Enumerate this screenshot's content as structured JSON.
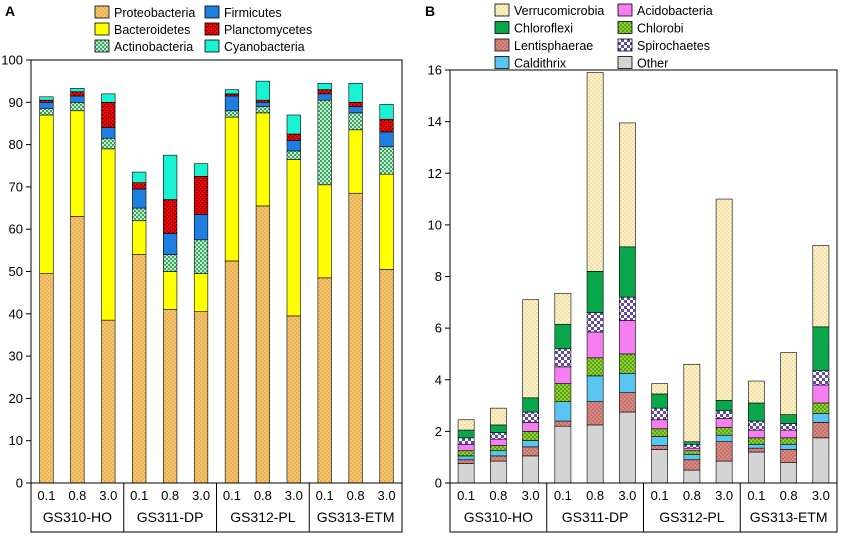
{
  "colors": {
    "Proteobacteria": "#f5c36a",
    "Bacteroidetes": "#ffff00",
    "Actinobacteria": "#a7dcb7",
    "Firmicutes": "#1f7fe0",
    "Planctomycetes": "#ff0000",
    "Cyanobacteria": "#19f2d3",
    "Verrucomicrobia": "#fbf1c4",
    "Acidobacteria": "#f57ff0",
    "Chloroflexi": "#0aa64c",
    "Chlorobi": "#8ed12a",
    "Lentisphaerae": "#cc7a73",
    "Spirochaetes": "#9b8fd0",
    "Caldithrix": "#5bc5f2",
    "Other": "#d4d4d4"
  },
  "chart_data": [
    {
      "panel": "A",
      "type": "bar",
      "stacked": true,
      "ylim": [
        0,
        100
      ],
      "yticks": [
        0,
        10,
        20,
        30,
        40,
        50,
        60,
        70,
        80,
        90,
        100
      ],
      "categories": [
        "0.1",
        "0.8",
        "3.0",
        "0.1",
        "0.8",
        "3.0",
        "0.1",
        "0.8",
        "3.0",
        "0.1",
        "0.8",
        "3.0"
      ],
      "groups": [
        {
          "label": "GS310-HO",
          "count": 3
        },
        {
          "label": "GS311-DP",
          "count": 3
        },
        {
          "label": "GS312-PL",
          "count": 3
        },
        {
          "label": "GS313-ETM",
          "count": 3
        }
      ],
      "legend": [
        "Proteobacteria",
        "Firmicutes",
        "Bacteroidetes",
        "Planctomycetes",
        "Actinobacteria",
        "Cyanobacteria"
      ],
      "series": [
        {
          "name": "Proteobacteria",
          "values": [
            49.5,
            63,
            38.5,
            54,
            41,
            40.5,
            52.5,
            65.5,
            39.5,
            48.5,
            68.5,
            50.5
          ]
        },
        {
          "name": "Bacteroidetes",
          "values": [
            37.5,
            25,
            40.5,
            8,
            9,
            9,
            34,
            22,
            37,
            22,
            15,
            22.5
          ]
        },
        {
          "name": "Actinobacteria",
          "values": [
            1.5,
            2,
            2.5,
            3,
            4,
            8,
            1.5,
            1.5,
            2,
            20,
            4,
            6.5
          ]
        },
        {
          "name": "Firmicutes",
          "values": [
            1.5,
            1.5,
            2.5,
            4.5,
            5,
            6,
            3.5,
            1,
            2.5,
            1.5,
            1.5,
            3.5
          ]
        },
        {
          "name": "Planctomycetes",
          "values": [
            0.5,
            1,
            6,
            1.5,
            8,
            9,
            0.5,
            0.5,
            1.5,
            1,
            1,
            3
          ]
        },
        {
          "name": "Cyanobacteria",
          "values": [
            0.8,
            0.8,
            2,
            2.5,
            10.5,
            3,
            1,
            4.5,
            4.5,
            1.5,
            4.5,
            3.5
          ]
        }
      ]
    },
    {
      "panel": "B",
      "type": "bar",
      "stacked": true,
      "ylim": [
        0,
        16
      ],
      "yticks": [
        0,
        2,
        4,
        6,
        8,
        10,
        12,
        14,
        16
      ],
      "categories": [
        "0.1",
        "0.8",
        "3.0",
        "0.1",
        "0.8",
        "3.0",
        "0.1",
        "0.8",
        "3.0",
        "0.1",
        "0.8",
        "3.0"
      ],
      "groups": [
        {
          "label": "GS310-HO",
          "count": 3
        },
        {
          "label": "GS311-DP",
          "count": 3
        },
        {
          "label": "GS312-PL",
          "count": 3
        },
        {
          "label": "GS313-ETM",
          "count": 3
        }
      ],
      "legend": [
        "Verrucomicrobia",
        "Acidobacteria",
        "Chloroflexi",
        "Chlorobi",
        "Lentisphaerae",
        "Spirochaetes",
        "Caldithrix",
        "Other"
      ],
      "series": [
        {
          "name": "Other",
          "values": [
            0.75,
            0.85,
            1.05,
            2.2,
            2.25,
            2.75,
            1.3,
            0.5,
            0.85,
            1.2,
            0.8,
            1.75
          ]
        },
        {
          "name": "Lentisphaerae",
          "values": [
            0.15,
            0.2,
            0.35,
            0.2,
            0.9,
            0.75,
            0.15,
            0.4,
            0.75,
            0.15,
            0.5,
            0.6
          ]
        },
        {
          "name": "Caldithrix",
          "values": [
            0.15,
            0.2,
            0.25,
            0.75,
            1.0,
            0.75,
            0.35,
            0.2,
            0.25,
            0.15,
            0.2,
            0.35
          ]
        },
        {
          "name": "Chlorobi",
          "values": [
            0.2,
            0.2,
            0.35,
            0.7,
            0.7,
            0.75,
            0.3,
            0.15,
            0.3,
            0.25,
            0.25,
            0.4
          ]
        },
        {
          "name": "Acidobacteria",
          "values": [
            0.25,
            0.25,
            0.35,
            0.65,
            1.0,
            1.3,
            0.35,
            0.1,
            0.35,
            0.3,
            0.3,
            0.7
          ]
        },
        {
          "name": "Spirochaetes",
          "values": [
            0.25,
            0.25,
            0.4,
            0.7,
            0.75,
            0.9,
            0.45,
            0.15,
            0.3,
            0.35,
            0.25,
            0.55
          ]
        },
        {
          "name": "Chloroflexi",
          "values": [
            0.3,
            0.3,
            0.55,
            0.95,
            1.6,
            1.95,
            0.55,
            0.1,
            0.4,
            0.7,
            0.35,
            1.7
          ]
        },
        {
          "name": "Verrucomicrobia",
          "values": [
            0.4,
            0.65,
            3.8,
            1.2,
            7.7,
            4.8,
            0.4,
            3.0,
            7.8,
            0.85,
            2.4,
            3.15
          ]
        }
      ]
    }
  ]
}
